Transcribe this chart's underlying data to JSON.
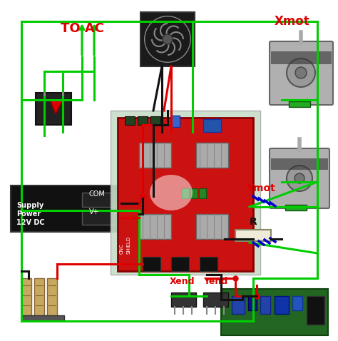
{
  "bg_color": "#f0f0f0",
  "title": "",
  "green": "#00cc00",
  "red": "#dd0000",
  "black": "#111111",
  "blue": "#0000cc",
  "gray": "#888888",
  "light_gray": "#cccccc",
  "dark_gray": "#444444",
  "board_bg": "#c8dcc8",
  "to_ac_text": "TO AC",
  "xmot_text": "Xmot",
  "ymot_text": "Ymot",
  "xend_text": "Xend",
  "yend_text": "Yend",
  "r_text": "R",
  "psu_line1": "12V DC",
  "psu_line2": "Power",
  "psu_line3": "Supply",
  "psu_vplus": "V+",
  "psu_com": "COM"
}
